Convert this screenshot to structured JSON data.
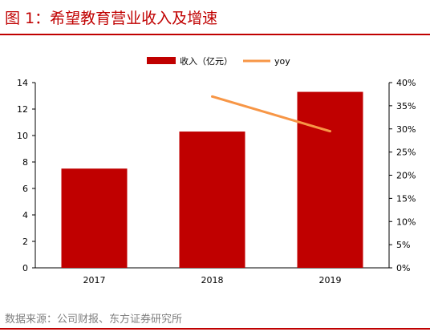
{
  "title": "图 1：希望教育营业收入及增速",
  "source": "数据来源：公司财报、东方证券研究所",
  "colors": {
    "bar": "#c00000",
    "line": "#f79646",
    "accent": "#c00000"
  },
  "chart_data": {
    "type": "bar",
    "categories": [
      "2017",
      "2018",
      "2019"
    ],
    "series": [
      {
        "name": "收入（亿元）",
        "type": "bar",
        "axis": "left",
        "values": [
          7.5,
          10.3,
          13.3
        ]
      },
      {
        "name": "yoy",
        "type": "line",
        "axis": "right",
        "values": [
          null,
          0.37,
          0.295
        ]
      }
    ],
    "ylim": [
      0,
      14
    ],
    "yticks": [
      "0",
      "2",
      "4",
      "6",
      "8",
      "10",
      "12",
      "14"
    ],
    "y2lim": [
      0,
      0.4
    ],
    "y2ticks": [
      "0%",
      "5%",
      "10%",
      "15%",
      "20%",
      "25%",
      "30%",
      "35%",
      "40%"
    ],
    "grid": false,
    "legend": "top-center"
  }
}
